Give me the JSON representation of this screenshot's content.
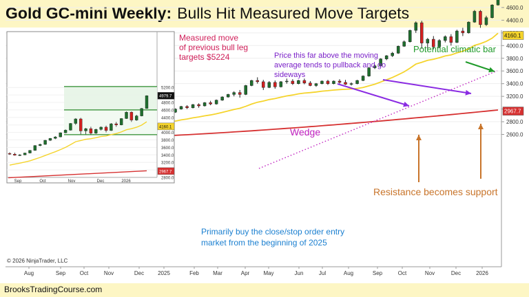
{
  "title": {
    "main": "Gold GC-mini Weekly:",
    "sub": "Bulls Hit Measured Move Targets"
  },
  "footer": {
    "site": "BrooksTradingCourse.com"
  },
  "copyright": "© 2026 NinjaTrader, LLC",
  "colors": {
    "bull": "#1f6f2e",
    "bear": "#d42020",
    "ema": "#f5d42c",
    "sma": "#d63030",
    "wedge": "#c020c0",
    "purple": "#8a2be2",
    "orange": "#c8742a",
    "blue": "#1a7fd0",
    "green": "#1f9a2a",
    "crimson": "#d0205a"
  },
  "annotations": {
    "measured_move": [
      "Measured move",
      "of previous bull leg",
      "targets $5224"
    ],
    "pullback": [
      "Price this far above the moving",
      "average tends to pullback and go",
      "sideways"
    ],
    "climactic": "Potential climatic bar",
    "wedge": "Wedge",
    "resistance": "Resistance becomes support",
    "buy": [
      "Primarily buy the close/stop order entry",
      "market from the beginning of 2025"
    ]
  },
  "chart_data": [
    {
      "type": "candlestick",
      "title": "",
      "y_ticks": [
        2600,
        2800,
        3000,
        3200,
        3400,
        3600,
        3800,
        4000,
        4200,
        4400,
        4600,
        4800,
        5000,
        5200
      ],
      "x_ticks": [
        "Aug",
        "Sep",
        "Oct",
        "Nov",
        "Dec",
        "2025",
        "Feb",
        "Mar",
        "Apr",
        "May",
        "Jun",
        "Jul",
        "Aug",
        "Sep",
        "Oct",
        "Nov",
        "Dec",
        "2026"
      ],
      "price_labels": {
        "last": "4979.7",
        "ema": "4160.1",
        "sma": "2967.7"
      },
      "ohlc": [
        [
          2645,
          2670,
          2620,
          2660
        ],
        [
          2660,
          2665,
          2615,
          2630
        ],
        [
          2630,
          2690,
          2625,
          2680
        ],
        [
          2680,
          2690,
          2640,
          2650
        ],
        [
          2650,
          2700,
          2645,
          2695
        ],
        [
          2695,
          2750,
          2690,
          2740
        ],
        [
          2740,
          2745,
          2700,
          2710
        ],
        [
          2710,
          2760,
          2705,
          2750
        ],
        [
          2750,
          2800,
          2745,
          2790
        ],
        [
          2790,
          2830,
          2780,
          2820
        ],
        [
          2820,
          2860,
          2810,
          2850
        ],
        [
          2850,
          2855,
          2815,
          2830
        ],
        [
          2830,
          2900,
          2825,
          2890
        ],
        [
          2890,
          2910,
          2860,
          2870
        ],
        [
          2870,
          2940,
          2865,
          2930
        ],
        [
          2930,
          2985,
          2925,
          2980
        ],
        [
          2980,
          2990,
          2940,
          2950
        ],
        [
          2950,
          2960,
          2760,
          2790
        ],
        [
          2790,
          2850,
          2770,
          2840
        ],
        [
          2840,
          2870,
          2760,
          2780
        ],
        [
          2780,
          2860,
          2775,
          2850
        ],
        [
          2850,
          2870,
          2790,
          2810
        ],
        [
          2810,
          2850,
          2780,
          2830
        ],
        [
          2830,
          2840,
          2790,
          2800
        ],
        [
          2800,
          2850,
          2795,
          2840
        ],
        [
          2840,
          2870,
          2820,
          2860
        ],
        [
          2860,
          2920,
          2850,
          2910
        ],
        [
          2910,
          2960,
          2900,
          2950
        ],
        [
          2950,
          3010,
          2940,
          3000
        ],
        [
          3000,
          3050,
          2990,
          3040
        ],
        [
          3040,
          3060,
          3000,
          3020
        ],
        [
          3020,
          3080,
          3010,
          3070
        ],
        [
          3070,
          3090,
          3020,
          3050
        ],
        [
          3050,
          3110,
          3040,
          3100
        ],
        [
          3100,
          3130,
          3060,
          3080
        ],
        [
          3080,
          3150,
          3070,
          3140
        ],
        [
          3140,
          3200,
          3130,
          3190
        ],
        [
          3190,
          3240,
          3180,
          3230
        ],
        [
          3230,
          3280,
          3200,
          3260
        ],
        [
          3260,
          3300,
          3180,
          3230
        ],
        [
          3230,
          3380,
          3220,
          3370
        ],
        [
          3370,
          3460,
          3360,
          3450
        ],
        [
          3450,
          3500,
          3400,
          3430
        ],
        [
          3430,
          3460,
          3300,
          3340
        ],
        [
          3340,
          3440,
          3330,
          3420
        ],
        [
          3420,
          3450,
          3320,
          3350
        ],
        [
          3350,
          3440,
          3340,
          3430
        ],
        [
          3430,
          3480,
          3400,
          3440
        ],
        [
          3440,
          3470,
          3380,
          3400
        ],
        [
          3400,
          3460,
          3390,
          3450
        ],
        [
          3450,
          3480,
          3390,
          3410
        ],
        [
          3410,
          3440,
          3360,
          3370
        ],
        [
          3370,
          3410,
          3350,
          3400
        ],
        [
          3400,
          3450,
          3390,
          3440
        ],
        [
          3440,
          3460,
          3380,
          3400
        ],
        [
          3400,
          3450,
          3390,
          3440
        ],
        [
          3440,
          3470,
          3400,
          3420
        ],
        [
          3420,
          3460,
          3380,
          3390
        ],
        [
          3390,
          3420,
          3370,
          3400
        ],
        [
          3400,
          3460,
          3390,
          3450
        ],
        [
          3450,
          3530,
          3440,
          3520
        ],
        [
          3520,
          3660,
          3510,
          3650
        ],
        [
          3650,
          3700,
          3630,
          3680
        ],
        [
          3680,
          3800,
          3670,
          3790
        ],
        [
          3790,
          3850,
          3770,
          3840
        ],
        [
          3840,
          3900,
          3820,
          3880
        ],
        [
          3880,
          4000,
          3870,
          3990
        ],
        [
          3990,
          4080,
          3980,
          4060
        ],
        [
          4060,
          4250,
          4050,
          4240
        ],
        [
          4240,
          4380,
          4200,
          4360
        ],
        [
          4360,
          4390,
          3950,
          4040
        ],
        [
          4040,
          4120,
          3950,
          4100
        ],
        [
          4100,
          4150,
          3940,
          3980
        ],
        [
          3980,
          4100,
          3960,
          4080
        ],
        [
          4080,
          4160,
          4050,
          4140
        ],
        [
          4140,
          4180,
          4000,
          4050
        ],
        [
          4050,
          4250,
          4040,
          4230
        ],
        [
          4230,
          4280,
          4150,
          4200
        ],
        [
          4200,
          4380,
          4190,
          4370
        ],
        [
          4370,
          4560,
          4360,
          4540
        ],
        [
          4540,
          4560,
          4280,
          4330
        ],
        [
          4330,
          4470,
          4310,
          4440
        ],
        [
          4440,
          4650,
          4430,
          4640
        ],
        [
          4640,
          4990,
          4630,
          4980
        ]
      ]
    },
    {
      "type": "candlestick",
      "title": "",
      "y_ticks": [
        2800,
        3000,
        3200,
        3400,
        3600,
        3800,
        4000,
        4200,
        4400,
        4600,
        4800,
        5000,
        5200
      ],
      "x_ticks": [
        "Sep",
        "Oct",
        "Nov",
        "Dec",
        "2026"
      ],
      "price_labels": {
        "last": "4979.7",
        "ema": "4160.1",
        "sma": "2967.7"
      },
      "measured_move_levels": [
        5224,
        4600,
        3940
      ]
    }
  ]
}
